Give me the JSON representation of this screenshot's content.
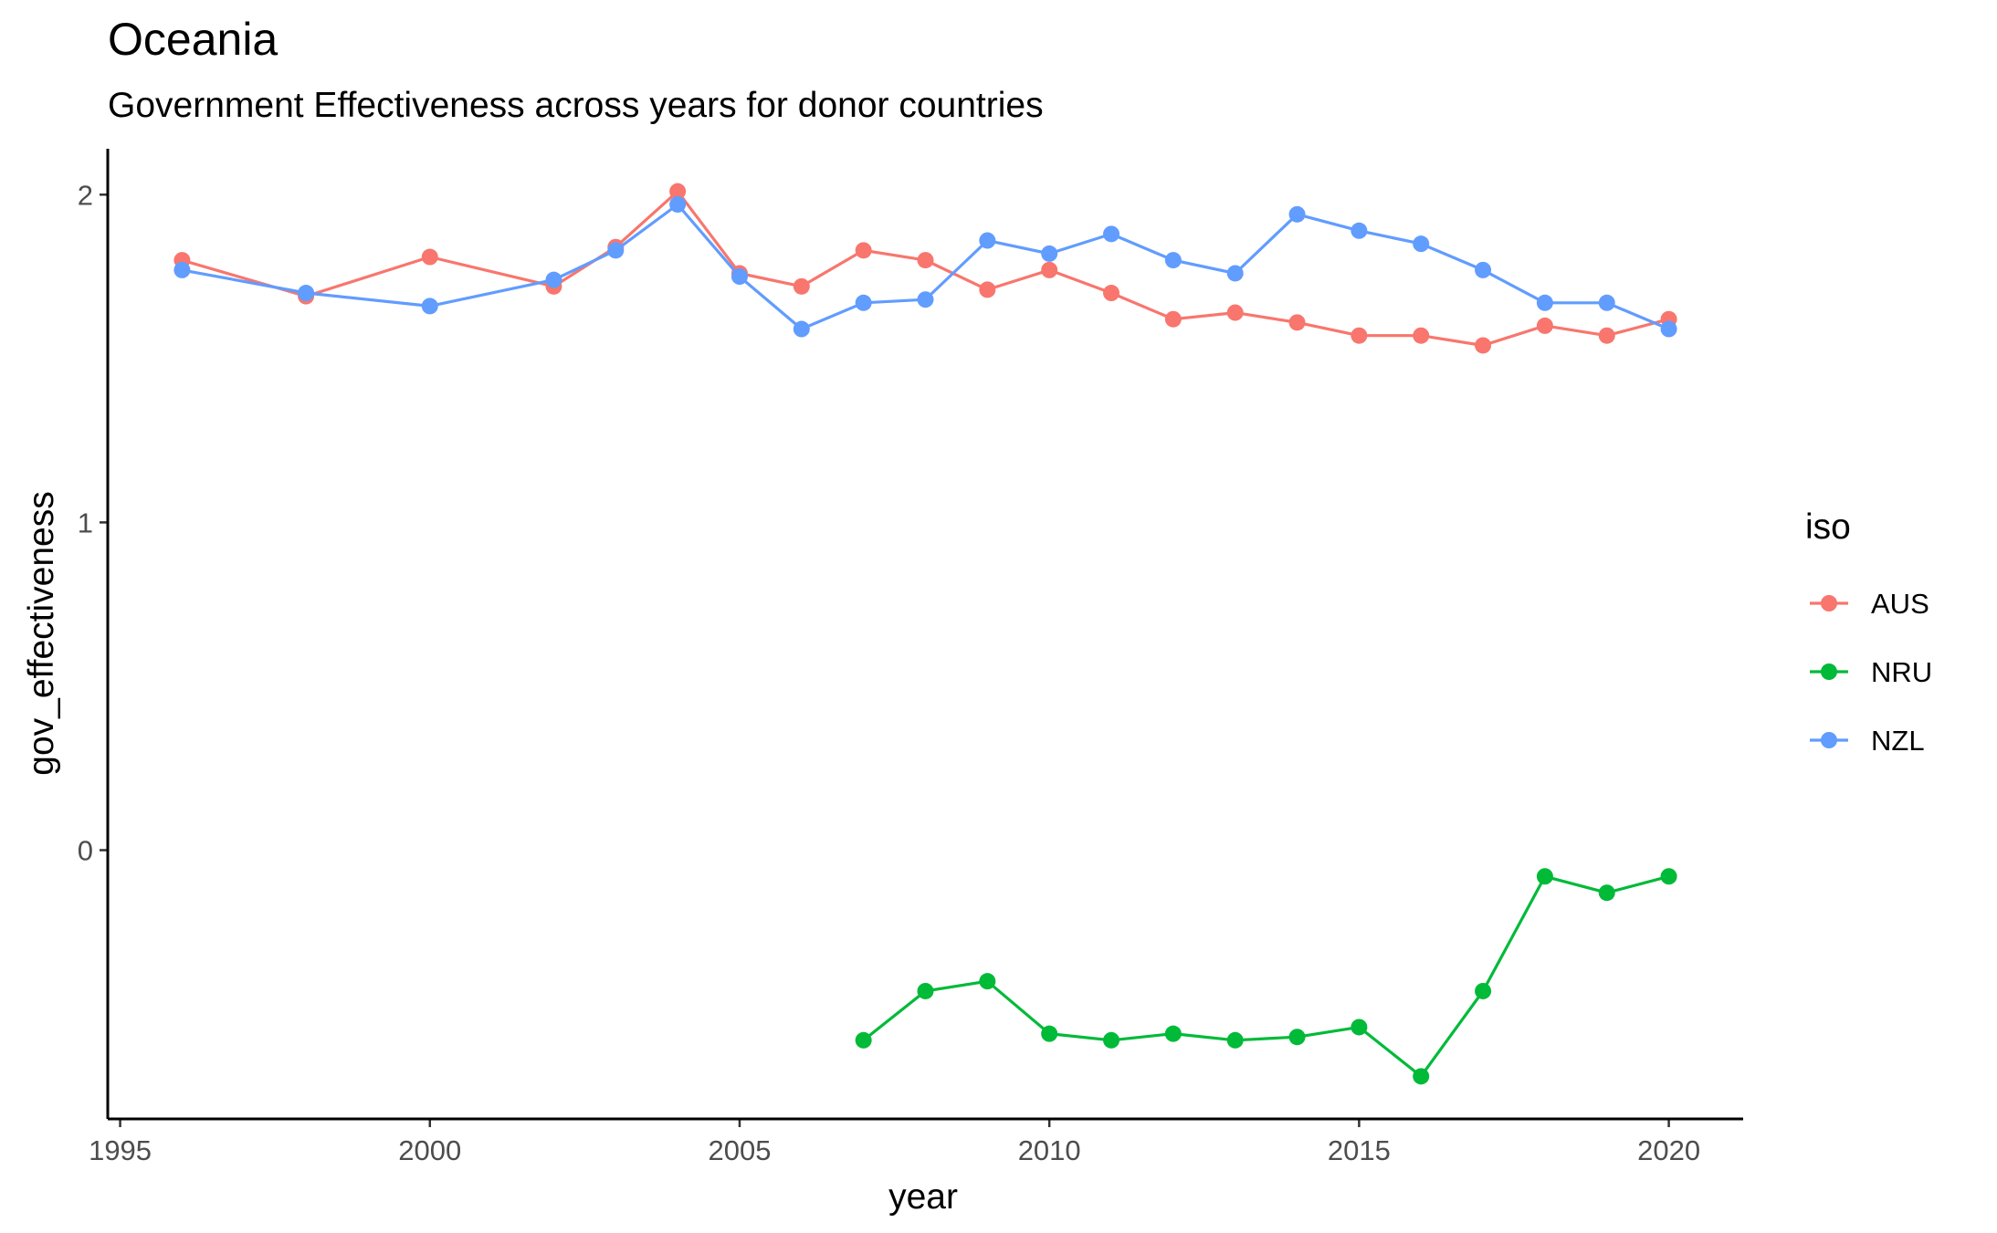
{
  "chart_data": {
    "type": "line",
    "title": "Oceania",
    "subtitle": "Government Effectiveness across years for donor countries",
    "xlabel": "year",
    "ylabel": "gov_effectiveness",
    "xlim": [
      1994.8,
      2021.2
    ],
    "ylim": [
      -0.82,
      2.14
    ],
    "x_ticks": [
      1995,
      2000,
      2005,
      2010,
      2015,
      2020
    ],
    "y_ticks": [
      0,
      1,
      2
    ],
    "grid": false,
    "legend": {
      "title": "iso",
      "position": "right"
    },
    "series": [
      {
        "name": "AUS",
        "color": "#F8766D",
        "x": [
          1996,
          1998,
          2000,
          2002,
          2003,
          2004,
          2005,
          2006,
          2007,
          2008,
          2009,
          2010,
          2011,
          2012,
          2013,
          2014,
          2015,
          2016,
          2017,
          2018,
          2019,
          2020
        ],
        "y": [
          1.8,
          1.69,
          1.81,
          1.72,
          1.84,
          2.01,
          1.76,
          1.72,
          1.83,
          1.8,
          1.71,
          1.77,
          1.7,
          1.62,
          1.64,
          1.61,
          1.57,
          1.57,
          1.54,
          1.6,
          1.57,
          1.62
        ]
      },
      {
        "name": "NRU",
        "color": "#00BA38",
        "x": [
          2007,
          2008,
          2009,
          2010,
          2011,
          2012,
          2013,
          2014,
          2015,
          2016,
          2017,
          2018,
          2019,
          2020
        ],
        "y": [
          -0.58,
          -0.43,
          -0.4,
          -0.56,
          -0.58,
          -0.56,
          -0.58,
          -0.57,
          -0.54,
          -0.69,
          -0.43,
          -0.08,
          -0.13,
          -0.08
        ]
      },
      {
        "name": "NZL",
        "color": "#619CFF",
        "x": [
          1996,
          1998,
          2000,
          2002,
          2003,
          2004,
          2005,
          2006,
          2007,
          2008,
          2009,
          2010,
          2011,
          2012,
          2013,
          2014,
          2015,
          2016,
          2017,
          2018,
          2019,
          2020
        ],
        "y": [
          1.77,
          1.7,
          1.66,
          1.74,
          1.83,
          1.97,
          1.75,
          1.59,
          1.67,
          1.68,
          1.86,
          1.82,
          1.88,
          1.8,
          1.76,
          1.94,
          1.89,
          1.85,
          1.77,
          1.67,
          1.67,
          1.59
        ]
      }
    ]
  }
}
